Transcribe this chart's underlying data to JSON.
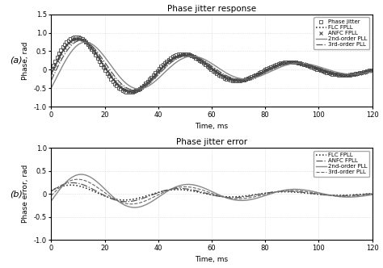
{
  "title_a": "Phase jitter response",
  "title_b": "Phase jitter error",
  "xlabel": "Time, ms",
  "ylabel_a": "Phase, rad",
  "ylabel_b": "Phase error, rad",
  "label_a": "(a)",
  "label_b": "(b)",
  "xlim": [
    0,
    120
  ],
  "ylim_a": [
    -1.0,
    1.5
  ],
  "ylim_b": [
    -1.0,
    1.0
  ],
  "yticks_a": [
    -1.0,
    -0.5,
    0,
    0.5,
    1.0,
    1.5
  ],
  "yticks_b": [
    -1.0,
    -0.5,
    0,
    0.5,
    1.0
  ],
  "xticks": [
    0,
    20,
    40,
    60,
    80,
    100,
    120
  ],
  "legend_a": [
    "Phase jitter",
    "FLC FPLL",
    "ANFC FPLL",
    "2nd-order PLL",
    "3rd-order PLL"
  ],
  "legend_b": [
    "FLC FPLL",
    "ANFC FPLL",
    "2nd-order PLL",
    "3rd-order PLL"
  ],
  "freq": 0.1571,
  "decay": 0.018,
  "amplitude": 1.05,
  "decay_b": 0.018,
  "amp_b_flc": 0.22,
  "amp_b_anfc": 0.28,
  "amp_b_pll2": 0.52,
  "amp_b_pll3": 0.38
}
